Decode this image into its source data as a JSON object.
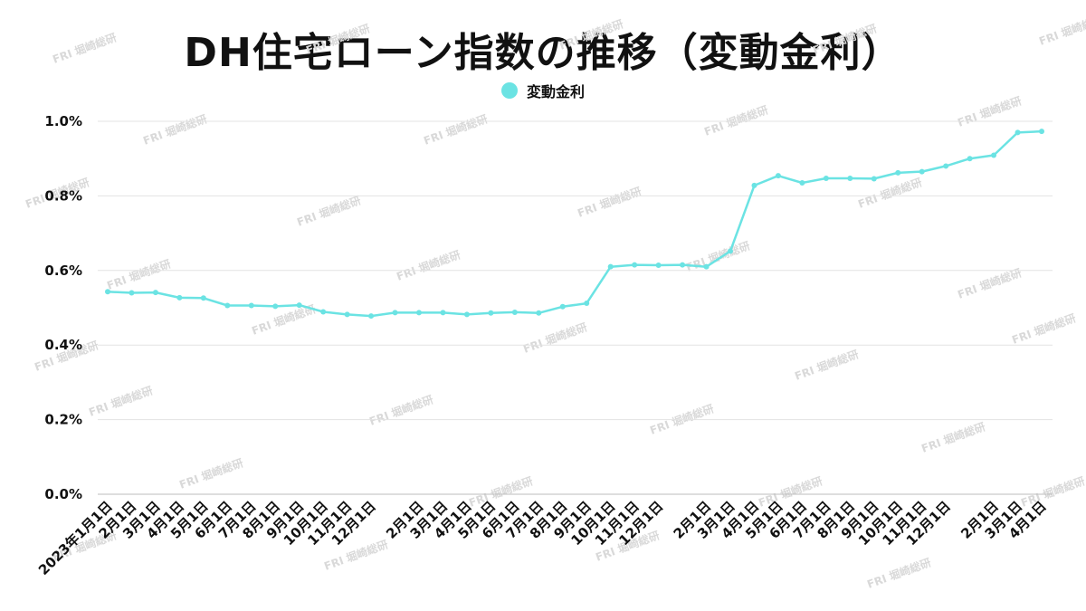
{
  "chart_data": {
    "type": "line",
    "title": "DH住宅ローン指数の推移（変動金利）",
    "legend_position": "top-center",
    "grid": true,
    "xlabel": "",
    "ylabel": "",
    "ylim": [
      0,
      1.0
    ],
    "y_ticks": [
      "0.0%",
      "0.2%",
      "0.4%",
      "0.6%",
      "0.8%",
      "1.0%"
    ],
    "x": [
      "2023年1月1日",
      "2月1日",
      "3月1日",
      "4月1日",
      "5月1日",
      "6月1日",
      "7月1日",
      "8月1日",
      "9月1日",
      "10月1日",
      "11月1日",
      "12月1日",
      "",
      "2月1日",
      "3月1日",
      "4月1日",
      "5月1日",
      "6月1日",
      "7月1日",
      "8月1日",
      "9月1日",
      "10月1日",
      "11月1日",
      "12月1日",
      "",
      "2月1日",
      "3月1日",
      "4月1日",
      "5月1日",
      "6月1日",
      "7月1日",
      "8月1日",
      "9月1日",
      "10月1日",
      "11月1日",
      "12月1日",
      "",
      "2月1日",
      "3月1日",
      "4月1日"
    ],
    "series": [
      {
        "name": "変動金利",
        "color": "#6be3e3",
        "values": [
          0.543,
          0.54,
          0.541,
          0.527,
          0.526,
          0.506,
          0.506,
          0.504,
          0.507,
          0.489,
          0.482,
          0.478,
          0.487,
          0.487,
          0.487,
          0.482,
          0.486,
          0.488,
          0.486,
          0.503,
          0.512,
          0.61,
          0.615,
          0.614,
          0.615,
          0.61,
          0.652,
          0.828,
          0.854,
          0.835,
          0.847,
          0.847,
          0.846,
          0.862,
          0.865,
          0.88,
          0.9,
          0.909,
          0.97,
          0.973
        ]
      }
    ]
  },
  "watermark_text": "FRI 堀崎総研"
}
